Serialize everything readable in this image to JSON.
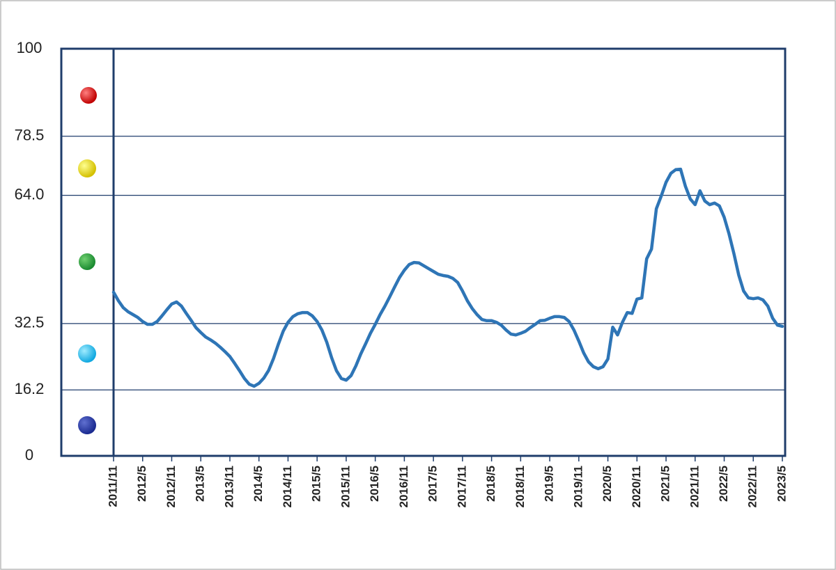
{
  "chart_data": {
    "type": "line",
    "categories": [
      "2011/11",
      null,
      null,
      null,
      null,
      null,
      "2012/5",
      null,
      null,
      null,
      null,
      null,
      "2012/11",
      null,
      null,
      null,
      null,
      null,
      "2013/5",
      null,
      null,
      null,
      null,
      null,
      "2013/11",
      null,
      null,
      null,
      null,
      null,
      "2014/5",
      null,
      null,
      null,
      null,
      null,
      "2014/11",
      null,
      null,
      null,
      null,
      null,
      "2015/5",
      null,
      null,
      null,
      null,
      null,
      "2015/11",
      null,
      null,
      null,
      null,
      null,
      "2016/5",
      null,
      null,
      null,
      null,
      null,
      "2016/11",
      null,
      null,
      null,
      null,
      null,
      "2017/5",
      null,
      null,
      null,
      null,
      null,
      "2017/11",
      null,
      null,
      null,
      null,
      null,
      "2018/5",
      null,
      null,
      null,
      null,
      null,
      "2018/11",
      null,
      null,
      null,
      null,
      null,
      "2019/5",
      null,
      null,
      null,
      null,
      null,
      "2019/11",
      null,
      null,
      null,
      null,
      null,
      "2020/5",
      null,
      null,
      null,
      null,
      null,
      "2020/11",
      null,
      null,
      null,
      null,
      null,
      "2021/5",
      null,
      null,
      null,
      null,
      null,
      "2021/11",
      null,
      null,
      null,
      null,
      null,
      "2022/5",
      null,
      null,
      null,
      null,
      null,
      "2022/11",
      null,
      null,
      null,
      null,
      null,
      "2023/5"
    ],
    "values": [
      40.2,
      38.1,
      36.4,
      35.4,
      34.7,
      34.0,
      33.0,
      32.3,
      32.3,
      33.0,
      34.4,
      35.9,
      37.3,
      37.8,
      36.8,
      35.0,
      33.3,
      31.5,
      30.3,
      29.2,
      28.5,
      27.7,
      26.7,
      25.6,
      24.4,
      22.7,
      20.9,
      19.0,
      17.6,
      17.1,
      17.8,
      19.1,
      21.0,
      23.9,
      27.4,
      30.6,
      32.8,
      34.2,
      34.9,
      35.2,
      35.2,
      34.4,
      33.0,
      30.9,
      27.9,
      24.1,
      20.9,
      19.0,
      18.6,
      19.7,
      22.1,
      25.0,
      27.5,
      30.1,
      32.3,
      34.7,
      36.8,
      39.1,
      41.5,
      43.8,
      45.6,
      47.0,
      47.5,
      47.4,
      46.7,
      46.0,
      45.3,
      44.6,
      44.3,
      44.1,
      43.6,
      42.6,
      40.5,
      38.1,
      36.2,
      34.7,
      33.5,
      33.2,
      33.2,
      32.8,
      32.1,
      30.9,
      29.9,
      29.7,
      30.1,
      30.6,
      31.5,
      32.3,
      33.2,
      33.3,
      33.8,
      34.2,
      34.2,
      34.0,
      33.0,
      30.9,
      28.2,
      25.3,
      23.1,
      21.9,
      21.4,
      21.9,
      23.8,
      31.6,
      29.7,
      32.8,
      35.2,
      35.0,
      38.5,
      38.8,
      48.4,
      50.8,
      60.7,
      63.8,
      67.2,
      69.4,
      70.3,
      70.4,
      66.2,
      63.1,
      61.7,
      65.1,
      62.6,
      61.7,
      62.1,
      61.4,
      58.6,
      54.5,
      49.7,
      44.4,
      40.5,
      38.8,
      38.6,
      38.8,
      38.3,
      36.8,
      33.8,
      32.1,
      31.8
    ],
    "color": "#2e75b6",
    "ylim": [
      0,
      100
    ],
    "yticks": [
      0,
      16.2,
      32.5,
      {
        "value": 64,
        "label": "64.0"
      },
      78.5,
      100
    ],
    "grid": true
  }
}
